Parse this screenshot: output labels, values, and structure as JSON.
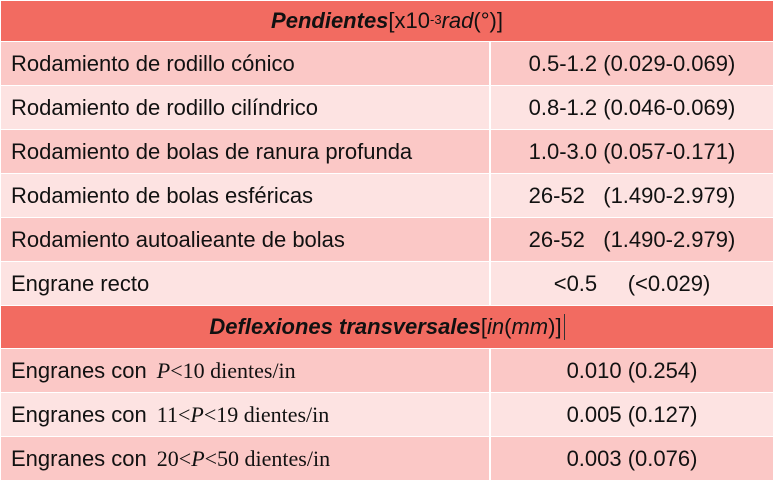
{
  "section1": {
    "title_bold": "Pendientes",
    "title_pre": " [x10",
    "title_exp": "-3",
    "title_unit": " rad",
    "title_post": " (°)]"
  },
  "rows1": [
    {
      "label": "Rodamiento de rodillo cónico",
      "value": "0.5-1.2 (0.029-0.069)"
    },
    {
      "label": "Rodamiento de rodillo cilíndrico",
      "value": "0.8-1.2 (0.046-0.069)"
    },
    {
      "label": "Rodamiento de bolas de ranura profunda",
      "value": "1.0-3.0 (0.057-0.171)"
    },
    {
      "label": "Rodamiento de bolas esféricas",
      "value": "26-52   (1.490-2.979)"
    },
    {
      "label": "Rodamiento autoalieante de bolas",
      "value": "26-52   (1.490-2.979)"
    },
    {
      "label": "Engrane recto",
      "value": "<0.5     (<0.029)"
    }
  ],
  "section2": {
    "title_bold": "Deflexiones transversales",
    "title_pre": " [",
    "title_in": "in",
    "title_mid": " (",
    "title_mm": "mm",
    "title_post": ")]"
  },
  "rows2": [
    {
      "label": "Engranes con",
      "math_pre": "",
      "math_var": "P",
      "math_post": "<10  dientes/in",
      "value": "0.010 (0.254)"
    },
    {
      "label": "Engranes con",
      "math_pre": "11<",
      "math_var": "P",
      "math_post": "<19  dientes/in",
      "value": "0.005 (0.127)"
    },
    {
      "label": "Engranes con",
      "math_pre": "20<",
      "math_var": "P",
      "math_post": "<50  dientes/in",
      "value": "0.003 (0.076)"
    }
  ]
}
